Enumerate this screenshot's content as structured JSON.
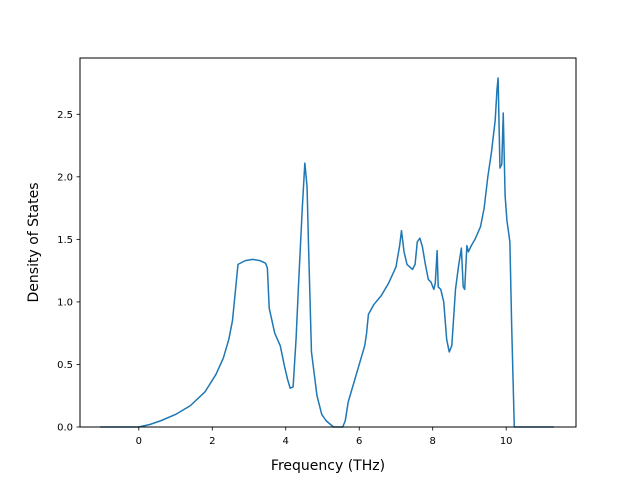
{
  "chart_data": {
    "type": "line",
    "title": "",
    "xlabel": "Frequency (THz)",
    "ylabel": "Density of States",
    "xlim": [
      -1.6,
      11.9
    ],
    "ylim": [
      0.0,
      2.95
    ],
    "xticks": [
      0,
      2,
      4,
      6,
      8,
      10
    ],
    "xtick_labels": [
      "0",
      "2",
      "4",
      "6",
      "8",
      "10"
    ],
    "yticks": [
      0.0,
      0.5,
      1.0,
      1.5,
      2.0,
      2.5
    ],
    "ytick_labels": [
      "0.0",
      "0.5",
      "1.0",
      "1.5",
      "2.0",
      "2.5"
    ],
    "grid": false,
    "legend": "none",
    "color": "#1f77b4",
    "series": [
      {
        "x": [
          -1.05,
          -0.5,
          0.0,
          0.3,
          0.6,
          1.0,
          1.4,
          1.8,
          2.1,
          2.3,
          2.45,
          2.55,
          2.6,
          2.7,
          2.9,
          3.1,
          3.3,
          3.45,
          3.5,
          3.55,
          3.7,
          3.85,
          3.97,
          4.05,
          4.12,
          4.2,
          4.28,
          4.35,
          4.45,
          4.52,
          4.58,
          4.62,
          4.7,
          4.85,
          4.98,
          5.1,
          5.3,
          5.55,
          5.62,
          5.7,
          5.9,
          6.05,
          6.15,
          6.2,
          6.25,
          6.4,
          6.6,
          6.8,
          7.0,
          7.1,
          7.15,
          7.22,
          7.3,
          7.45,
          7.52,
          7.58,
          7.65,
          7.72,
          7.8,
          7.88,
          7.95,
          8.03,
          8.07,
          8.12,
          8.15,
          8.22,
          8.3,
          8.38,
          8.45,
          8.52,
          8.62,
          8.7,
          8.78,
          8.83,
          8.87,
          8.93,
          8.97,
          9.05,
          9.15,
          9.3,
          9.4,
          9.5,
          9.6,
          9.7,
          9.75,
          9.78,
          9.83,
          9.88,
          9.92,
          9.97,
          10.02,
          10.1,
          10.15,
          10.22,
          10.3,
          10.6,
          11.3
        ],
        "y": [
          0.0,
          0.0,
          0.0,
          0.02,
          0.05,
          0.1,
          0.17,
          0.28,
          0.42,
          0.55,
          0.7,
          0.85,
          1.0,
          1.3,
          1.33,
          1.34,
          1.33,
          1.31,
          1.27,
          0.95,
          0.75,
          0.65,
          0.48,
          0.38,
          0.31,
          0.32,
          0.7,
          1.15,
          1.75,
          2.11,
          1.92,
          1.45,
          0.6,
          0.25,
          0.1,
          0.05,
          0.0,
          0.0,
          0.05,
          0.2,
          0.4,
          0.55,
          0.65,
          0.75,
          0.9,
          0.98,
          1.05,
          1.15,
          1.28,
          1.45,
          1.57,
          1.4,
          1.3,
          1.26,
          1.3,
          1.48,
          1.51,
          1.44,
          1.3,
          1.18,
          1.16,
          1.1,
          1.15,
          1.41,
          1.12,
          1.1,
          1.0,
          0.7,
          0.6,
          0.65,
          1.1,
          1.28,
          1.43,
          1.12,
          1.1,
          1.45,
          1.4,
          1.45,
          1.5,
          1.6,
          1.75,
          2.0,
          2.2,
          2.45,
          2.7,
          2.79,
          2.07,
          2.1,
          2.51,
          1.85,
          1.65,
          1.48,
          0.8,
          0.0,
          0.0,
          0.0,
          0.0
        ]
      }
    ]
  }
}
